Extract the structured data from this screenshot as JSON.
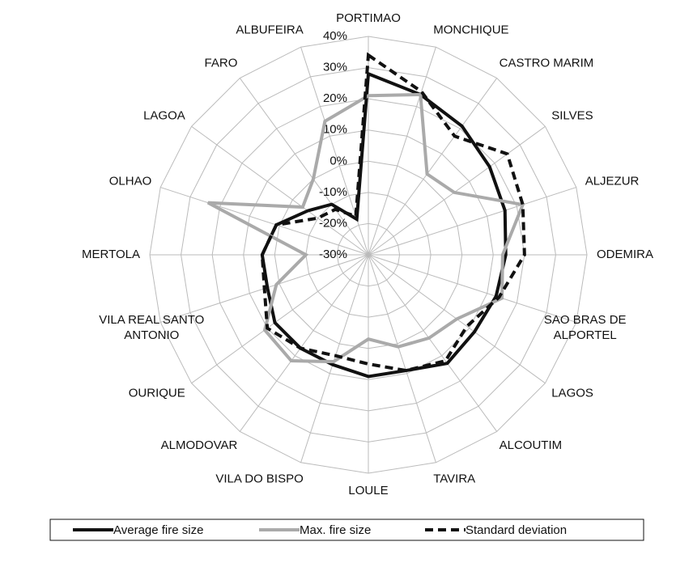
{
  "chart_data": {
    "type": "radar",
    "categories": [
      "PORTIMAO",
      "MONCHIQUE",
      "CASTRO MARIM",
      "SILVES",
      "ALJEZUR",
      "ODEMIRA",
      "SAO BRAS DE ALPORTEL",
      "LAGOS",
      "ALCOUTIM",
      "TAVIRA",
      "LOULE",
      "VILA DO BISPO",
      "ALMODOVAR",
      "OURIQUE",
      "VILA REAL SANTO ANTONIO",
      "MERTOLA",
      "OLHAO",
      "LAGOA",
      "FARO",
      "ALBUFEIRA"
    ],
    "series": [
      {
        "name": "Average fire size",
        "color": "#111111",
        "dash": false,
        "values": [
          28,
          24,
          21,
          18,
          16,
          14,
          13,
          12,
          13,
          9,
          9,
          7,
          7,
          7,
          4,
          4,
          1,
          -6,
          -10,
          -18
        ]
      },
      {
        "name": "Max. fire size",
        "color": "#aaaaaa",
        "dash": false,
        "values": [
          21,
          24,
          2,
          4,
          22,
          13,
          15,
          5,
          3,
          1,
          -3,
          6,
          12,
          11,
          1,
          -10,
          24,
          -4,
          0,
          15
        ]
      },
      {
        "name": "Standard deviation",
        "color": "#111111",
        "dash": true,
        "values": [
          34,
          25,
          17,
          25,
          22,
          20,
          14,
          9,
          12,
          9,
          5,
          4,
          7,
          10,
          5,
          4,
          1,
          -10,
          -12,
          -17
        ]
      }
    ],
    "rlim": [
      -30,
      40
    ],
    "rticks": [
      {
        "value": -30,
        "label": "-30%"
      },
      {
        "value": -20,
        "label": "-20%"
      },
      {
        "value": -10,
        "label": "-10%"
      },
      {
        "value": 0,
        "label": "0%"
      },
      {
        "value": 10,
        "label": "10%"
      },
      {
        "value": 20,
        "label": "20%"
      },
      {
        "value": 30,
        "label": "30%"
      },
      {
        "value": 40,
        "label": "40%"
      }
    ],
    "grid": true,
    "legend": "bottom"
  }
}
